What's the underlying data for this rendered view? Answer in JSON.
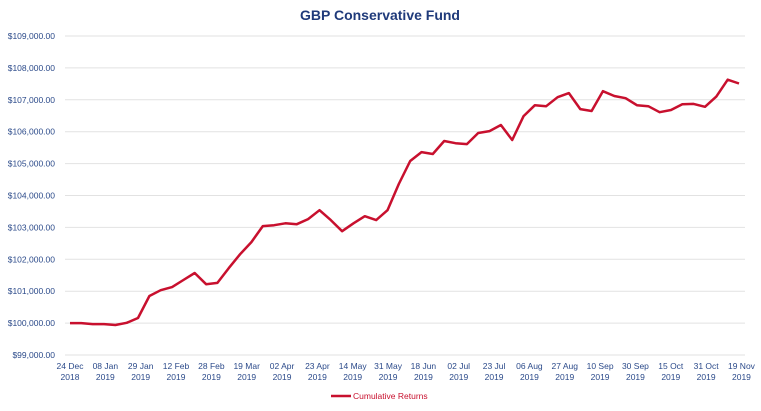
{
  "chart_data": {
    "type": "line",
    "title": "GBP Conservative Fund",
    "xlabel": "",
    "ylabel": "",
    "ylim": [
      99000,
      109000
    ],
    "y_ticks": [
      99000,
      100000,
      101000,
      102000,
      103000,
      104000,
      105000,
      106000,
      107000,
      108000,
      109000
    ],
    "y_tick_labels": [
      "$99,000.00",
      "$100,000.00",
      "$101,000.00",
      "$102,000.00",
      "$103,000.00",
      "$104,000.00",
      "$105,000.00",
      "$106,000.00",
      "$107,000.00",
      "$108,000.00",
      "$109,000.00"
    ],
    "x_tick_labels": [
      [
        "24 Dec",
        "2018"
      ],
      [
        "08 Jan",
        "2019"
      ],
      [
        "29 Jan",
        "2019"
      ],
      [
        "12 Feb",
        "2019"
      ],
      [
        "28 Feb",
        "2019"
      ],
      [
        "19 Mar",
        "2019"
      ],
      [
        "02 Apr",
        "2019"
      ],
      [
        "23 Apr",
        "2019"
      ],
      [
        "14 May",
        "2019"
      ],
      [
        "31 May",
        "2019"
      ],
      [
        "18 Jun",
        "2019"
      ],
      [
        "02 Jul",
        "2019"
      ],
      [
        "23 Jul",
        "2019"
      ],
      [
        "06 Aug",
        "2019"
      ],
      [
        "27 Aug",
        "2019"
      ],
      [
        "10 Sep",
        "2019"
      ],
      [
        "30 Sep",
        "2019"
      ],
      [
        "15 Oct",
        "2019"
      ],
      [
        "31 Oct",
        "2019"
      ],
      [
        "19 Nov",
        "2019"
      ]
    ],
    "x_tick_every_n_points": 3,
    "grid": true,
    "legend_position": "bottom",
    "series": [
      {
        "name": "Cumulative Returns",
        "color": "#c8102e",
        "values": [
          100000,
          100000,
          99970,
          99970,
          99940,
          100010,
          100160,
          100850,
          101030,
          101130,
          101350,
          101570,
          101220,
          101260,
          101720,
          102160,
          102540,
          103040,
          103070,
          103130,
          103100,
          103260,
          103540,
          103230,
          102880,
          103130,
          103350,
          103230,
          103540,
          104360,
          105080,
          105360,
          105300,
          105710,
          105640,
          105610,
          105960,
          106020,
          106210,
          105740,
          106490,
          106830,
          106800,
          107080,
          107210,
          106710,
          106650,
          107270,
          107120,
          107050,
          106830,
          106800,
          106610,
          106680,
          106860,
          106870,
          106780,
          107100,
          107630,
          107510
        ]
      }
    ]
  },
  "colors": {
    "title": "#1f3a7a",
    "axis_text": "#2b4a8a",
    "line": "#c8102e",
    "grid": "#e2e2e2"
  }
}
